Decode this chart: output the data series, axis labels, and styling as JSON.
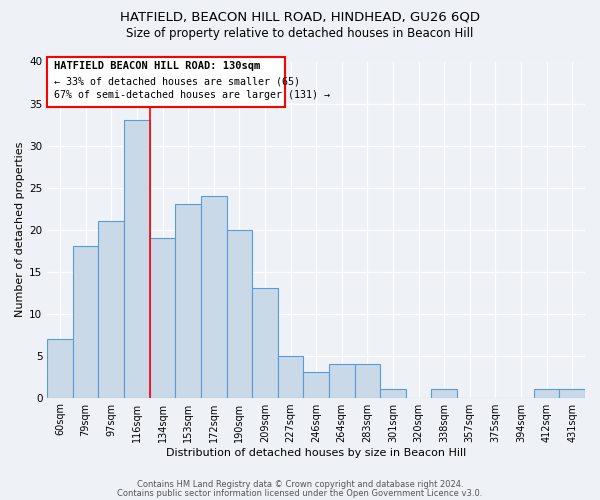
{
  "title": "HATFIELD, BEACON HILL ROAD, HINDHEAD, GU26 6QD",
  "subtitle": "Size of property relative to detached houses in Beacon Hill",
  "xlabel": "Distribution of detached houses by size in Beacon Hill",
  "ylabel": "Number of detached properties",
  "categories": [
    "60sqm",
    "79sqm",
    "97sqm",
    "116sqm",
    "134sqm",
    "153sqm",
    "172sqm",
    "190sqm",
    "209sqm",
    "227sqm",
    "246sqm",
    "264sqm",
    "283sqm",
    "301sqm",
    "320sqm",
    "338sqm",
    "357sqm",
    "375sqm",
    "394sqm",
    "412sqm",
    "431sqm"
  ],
  "values": [
    7,
    18,
    21,
    33,
    19,
    23,
    24,
    20,
    13,
    5,
    3,
    4,
    4,
    1,
    0,
    1,
    0,
    0,
    0,
    1,
    1
  ],
  "bar_color": "#c9d9e8",
  "bar_edge_color": "#5b9bd5",
  "highlight_line_index": 4,
  "annotation_title": "HATFIELD BEACON HILL ROAD: 130sqm",
  "annotation_line1": "← 33% of detached houses are smaller (65)",
  "annotation_line2": "67% of semi-detached houses are larger (131) →",
  "ylim": [
    0,
    40
  ],
  "yticks": [
    0,
    5,
    10,
    15,
    20,
    25,
    30,
    35,
    40
  ],
  "footer1": "Contains HM Land Registry data © Crown copyright and database right 2024.",
  "footer2": "Contains public sector information licensed under the Open Government Licence v3.0.",
  "background_color": "#eef2f7",
  "grid_color": "#ffffff",
  "title_fontsize": 9.5,
  "subtitle_fontsize": 8.5,
  "axis_label_fontsize": 8,
  "tick_fontsize": 7
}
